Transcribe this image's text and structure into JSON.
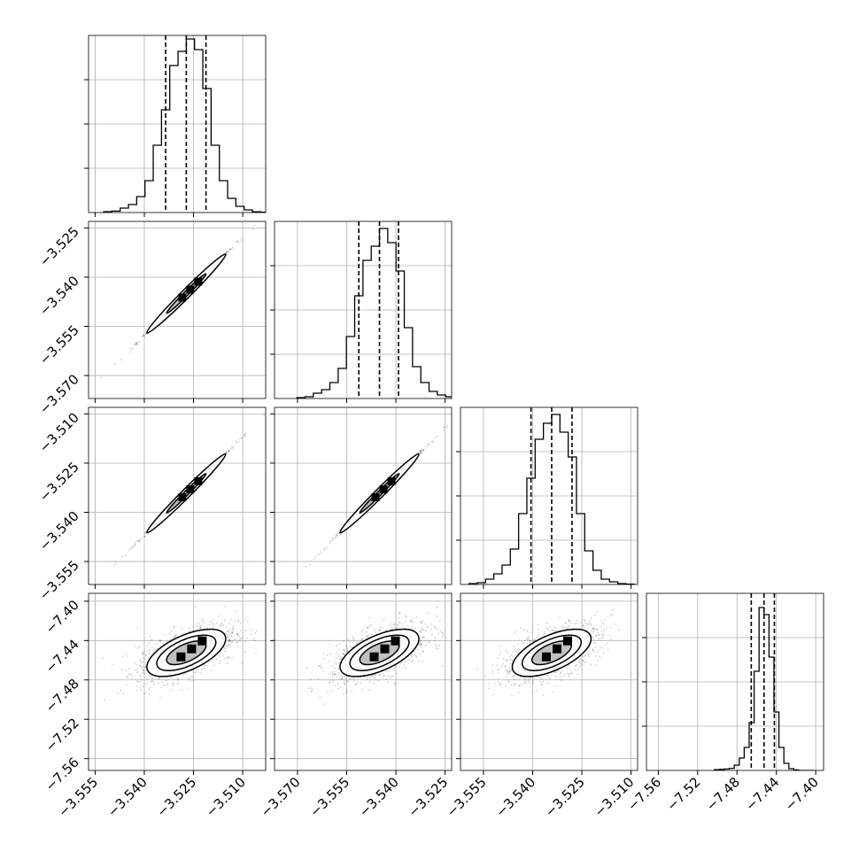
{
  "chart_data": {
    "type": "corner",
    "dimensions": 4,
    "axis_ranges": [
      [
        -3.557,
        -3.503
      ],
      [
        -3.577,
        -3.523
      ],
      [
        -3.562,
        -3.508
      ],
      [
        -7.572,
        -7.392
      ]
    ],
    "tick_values": [
      [
        -3.555,
        -3.54,
        -3.525,
        -3.51
      ],
      [
        -3.57,
        -3.555,
        -3.54,
        -3.525
      ],
      [
        -3.555,
        -3.54,
        -3.525,
        -3.51
      ],
      [
        -7.56,
        -7.52,
        -7.48,
        -7.44,
        -7.4
      ]
    ],
    "tick_labels": [
      [
        "−3.555",
        "−3.540",
        "−3.525",
        "−3.510"
      ],
      [
        "−3.570",
        "−3.555",
        "−3.540",
        "−3.525"
      ],
      [
        "−3.555",
        "−3.540",
        "−3.525",
        "−3.510"
      ],
      [
        "−7.56",
        "−7.52",
        "−7.48",
        "−7.44",
        "−7.40"
      ]
    ],
    "quantiles": [
      [
        -3.5335,
        -3.5272,
        -3.5212
      ],
      [
        -3.5513,
        -3.545,
        -3.5392
      ],
      [
        -3.5405,
        -3.5342,
        -3.528
      ],
      [
        -7.4655,
        -7.4525,
        -7.442
      ]
    ],
    "histograms": [
      [
        0.005,
        0.008,
        0.025,
        0.045,
        0.09,
        0.18,
        0.38,
        0.58,
        0.83,
        0.91,
        0.98,
        0.92,
        0.7,
        0.38,
        0.18,
        0.08,
        0.035,
        0.015,
        0.004,
        0.002
      ],
      [
        0.005,
        0.01,
        0.03,
        0.05,
        0.09,
        0.17,
        0.35,
        0.58,
        0.78,
        0.86,
        0.96,
        0.88,
        0.72,
        0.4,
        0.18,
        0.09,
        0.04,
        0.02,
        0.01,
        0.003
      ],
      [
        0.005,
        0.01,
        0.03,
        0.06,
        0.11,
        0.2,
        0.4,
        0.6,
        0.82,
        0.91,
        0.96,
        0.86,
        0.72,
        0.4,
        0.19,
        0.08,
        0.03,
        0.015,
        0.005,
        0.002
      ],
      [
        0.004,
        0.006,
        0.008,
        0.012,
        0.03,
        0.07,
        0.13,
        0.27,
        0.56,
        0.92,
        0.88,
        0.64,
        0.33,
        0.13,
        0.04,
        0.01,
        0.003,
        0.0,
        0.0,
        0.0
      ]
    ],
    "correlations": [
      [
        1,
        0.999,
        0.999,
        0.6
      ],
      [
        0.999,
        1,
        0.999,
        0.6
      ],
      [
        0.999,
        0.999,
        1,
        0.6
      ],
      [
        0.6,
        0.6,
        0.6,
        1
      ]
    ],
    "means": [
      -3.5272,
      -3.545,
      -3.5342,
      -7.4525
    ],
    "sigmas": [
      0.006,
      0.006,
      0.006,
      0.012
    ],
    "grid": true,
    "show_titles": false
  }
}
